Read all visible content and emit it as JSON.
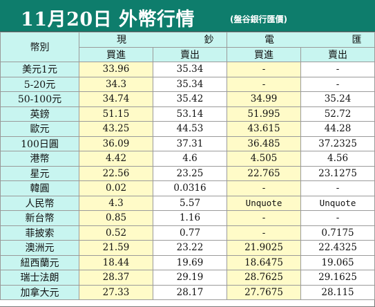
{
  "header": {
    "title": "11月20日 外幣行情",
    "source": "(盤谷銀行匯價)"
  },
  "table": {
    "currency_header": "幣別",
    "groups": [
      "現 鈔",
      "電 匯"
    ],
    "columns": [
      "買進",
      "賣出",
      "買進",
      "賣出"
    ],
    "rows": [
      [
        "美元1元",
        "33.96",
        "35.34",
        "-",
        "-"
      ],
      [
        "5-20元",
        "34.3",
        "35.34",
        "-",
        "-"
      ],
      [
        "50-100元",
        "34.74",
        "35.42",
        "34.99",
        "35.24"
      ],
      [
        "英鎊",
        "51.15",
        "53.14",
        "51.995",
        "52.72"
      ],
      [
        "歐元",
        "43.25",
        "44.53",
        "43.615",
        "44.28"
      ],
      [
        "100日圓",
        "36.09",
        "37.31",
        "36.485",
        "37.2325"
      ],
      [
        "港幣",
        "4.42",
        "4.6",
        "4.505",
        "4.56"
      ],
      [
        "星元",
        "22.56",
        "23.25",
        "22.765",
        "23.1275"
      ],
      [
        "韓圓",
        "0.02",
        "0.0316",
        "-",
        "-"
      ],
      [
        "人民幣",
        "4.3",
        "5.57",
        "Unquote",
        "Unquote"
      ],
      [
        "新台幣",
        "0.85",
        "1.16",
        "-",
        "-"
      ],
      [
        "菲披索",
        "0.52",
        "0.77",
        "-",
        "0.7175"
      ],
      [
        "澳洲元",
        "21.59",
        "23.22",
        "21.9025",
        "22.4325"
      ],
      [
        "紐西蘭元",
        "18.44",
        "19.69",
        "18.6475",
        "19.065"
      ],
      [
        "瑞士法朗",
        "28.37",
        "29.19",
        "28.7625",
        "29.1625"
      ],
      [
        "加拿大元",
        "27.33",
        "28.17",
        "27.7675",
        "28.115"
      ]
    ]
  }
}
